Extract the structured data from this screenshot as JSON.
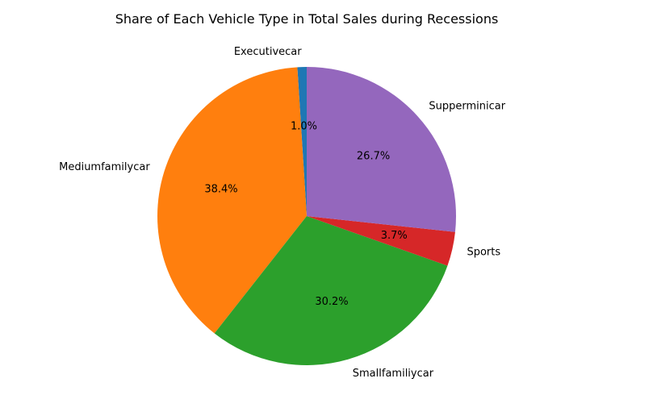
{
  "chart_data": {
    "type": "pie",
    "title": "Share of Each Vehicle Type in Total Sales during Recessions",
    "slices": [
      {
        "label": "Executivecar",
        "value": 1.0,
        "pct_label": "1.0%",
        "color": "#1f77b4"
      },
      {
        "label": "Mediumfamilycar",
        "value": 38.4,
        "pct_label": "38.4%",
        "color": "#ff7f0e"
      },
      {
        "label": "Smallfamiliycar",
        "value": 30.2,
        "pct_label": "30.2%",
        "color": "#2ca02c"
      },
      {
        "label": "Sports",
        "value": 3.7,
        "pct_label": "3.7%",
        "color": "#d62728"
      },
      {
        "label": "Supperminicar",
        "value": 26.7,
        "pct_label": "26.7%",
        "color": "#9467bd"
      }
    ],
    "start_angle_deg": 90,
    "direction": "counterclockwise",
    "legend": "none"
  }
}
